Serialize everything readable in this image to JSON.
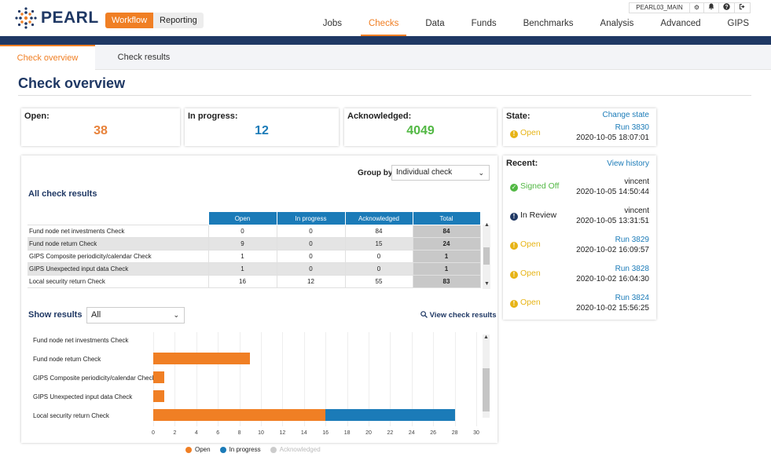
{
  "header": {
    "logo_text": "PEARL",
    "modes": [
      "Workflow",
      "Reporting"
    ],
    "active_mode": "Workflow",
    "env": "PEARL03_MAIN",
    "icons": [
      "gear-icon",
      "bell-icon",
      "help-icon",
      "logout-icon"
    ],
    "nav": [
      "Jobs",
      "Checks",
      "Data",
      "Funds",
      "Benchmarks",
      "Analysis",
      "Advanced",
      "GIPS"
    ],
    "active_nav": "Checks"
  },
  "subtabs": [
    "Check overview",
    "Check results"
  ],
  "page_title": "Check overview",
  "summary": {
    "open_label": "Open:",
    "open_value": "38",
    "inprogress_label": "In progress:",
    "inprogress_value": "12",
    "ack_label": "Acknowledged:",
    "ack_value": "4049"
  },
  "state": {
    "label": "State:",
    "change_link": "Change state",
    "status": "Open",
    "run": "Run 3830",
    "time": "2020-10-05 18:07:01"
  },
  "recent": {
    "label": "Recent:",
    "history_link": "View history",
    "items": [
      {
        "status": "Signed Off",
        "kind": "signed",
        "right": "vincent",
        "time": "2020-10-05 14:50:44"
      },
      {
        "status": "In Review",
        "kind": "review",
        "right": "vincent",
        "time": "2020-10-05 13:31:51"
      },
      {
        "status": "Open",
        "kind": "open",
        "right": "Run 3829",
        "time": "2020-10-02 16:09:57"
      },
      {
        "status": "Open",
        "kind": "open",
        "right": "Run 3828",
        "time": "2020-10-02 16:04:30"
      },
      {
        "status": "Open",
        "kind": "open",
        "right": "Run 3824",
        "time": "2020-10-02 15:56:25"
      }
    ]
  },
  "main": {
    "group_by_label": "Group by",
    "group_by_value": "Individual check",
    "all_results_title": "All check results",
    "table": {
      "headers": [
        "Open",
        "In progress",
        "Acknowledged",
        "Total"
      ],
      "rows": [
        {
          "name": "Fund node net investments Check",
          "open": "0",
          "inprogress": "0",
          "ack": "84",
          "total": "84"
        },
        {
          "name": "Fund node return Check",
          "open": "9",
          "inprogress": "0",
          "ack": "15",
          "total": "24"
        },
        {
          "name": "GIPS Composite periodicity/calendar Check",
          "open": "1",
          "inprogress": "0",
          "ack": "0",
          "total": "1"
        },
        {
          "name": "GIPS Unexpected input data Check",
          "open": "1",
          "inprogress": "0",
          "ack": "0",
          "total": "1"
        },
        {
          "name": "Local security return Check",
          "open": "16",
          "inprogress": "12",
          "ack": "55",
          "total": "83"
        }
      ]
    },
    "show_results_label": "Show results",
    "show_results_value": "All",
    "view_results_link": "View check results"
  },
  "chart_data": {
    "type": "bar",
    "orientation": "horizontal",
    "stacked": true,
    "categories": [
      "Fund node net investments Check",
      "Fund node return Check",
      "GIPS Composite periodicity/calendar Check",
      "GIPS Unexpected input data Check",
      "Local security return Check"
    ],
    "series": [
      {
        "name": "Open",
        "color": "#f07f24",
        "values": [
          0,
          9,
          1,
          1,
          16
        ]
      },
      {
        "name": "In progress",
        "color": "#1b7bb8",
        "values": [
          0,
          0,
          0,
          0,
          12
        ]
      },
      {
        "name": "Acknowledged",
        "color": "#cccccc",
        "values": [
          0,
          0,
          0,
          0,
          0
        ],
        "hidden": true
      }
    ],
    "xticks": [
      "0",
      "2",
      "4",
      "6",
      "8",
      "10",
      "12",
      "14",
      "16",
      "18",
      "20",
      "22",
      "24",
      "26",
      "28",
      "30"
    ],
    "xlim": [
      0,
      30
    ],
    "legend_position": "bottom"
  }
}
